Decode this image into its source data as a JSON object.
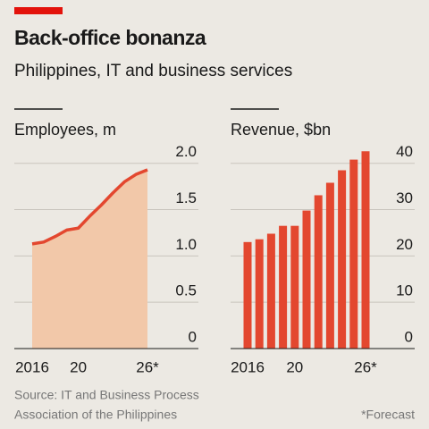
{
  "header": {
    "title": "Back-office bonanza",
    "subtitle": "Philippines, IT and business services"
  },
  "chart_data": [
    {
      "type": "area",
      "title": "Employees, m",
      "color": "#e3472f",
      "fill": "#f2c8a9",
      "x": [
        2016,
        2017,
        2018,
        2019,
        2020,
        2021,
        2022,
        2023,
        2024,
        2025,
        2026
      ],
      "values": [
        1.13,
        1.15,
        1.21,
        1.28,
        1.3,
        1.43,
        1.55,
        1.68,
        1.8,
        1.88,
        1.93
      ],
      "xlim": [
        2016,
        2026
      ],
      "xticks": [
        {
          "value": 2016,
          "label": "2016"
        },
        {
          "value": 2020,
          "label": "20"
        },
        {
          "value": 2026,
          "label": "26*"
        }
      ],
      "ylim": [
        0,
        2.2
      ],
      "yticks": [
        0,
        0.5,
        {
          "value": 1,
          "label": "1.0"
        },
        1.5,
        {
          "value": 2,
          "label": "2.0"
        }
      ],
      "grid": true
    },
    {
      "type": "bar",
      "title": "Revenue, $bn",
      "color": "#e3472f",
      "x": [
        2016,
        2017,
        2018,
        2019,
        2020,
        2021,
        2022,
        2023,
        2024,
        2025,
        2026
      ],
      "values": [
        23.0,
        23.6,
        24.8,
        26.5,
        26.5,
        29.8,
        33.1,
        35.8,
        38.5,
        40.8,
        42.6
      ],
      "xlim": [
        2016,
        2026
      ],
      "xticks": [
        {
          "value": 2016,
          "label": "2016"
        },
        {
          "value": 2020,
          "label": "20"
        },
        {
          "value": 2026,
          "label": "26*"
        }
      ],
      "ylim": [
        0,
        44
      ],
      "yticks": [
        0,
        10,
        20,
        30,
        40
      ],
      "grid": true
    }
  ],
  "source": [
    "Source: IT and Business Process",
    "Association of the Philippines"
  ],
  "footnote": "*Forecast"
}
